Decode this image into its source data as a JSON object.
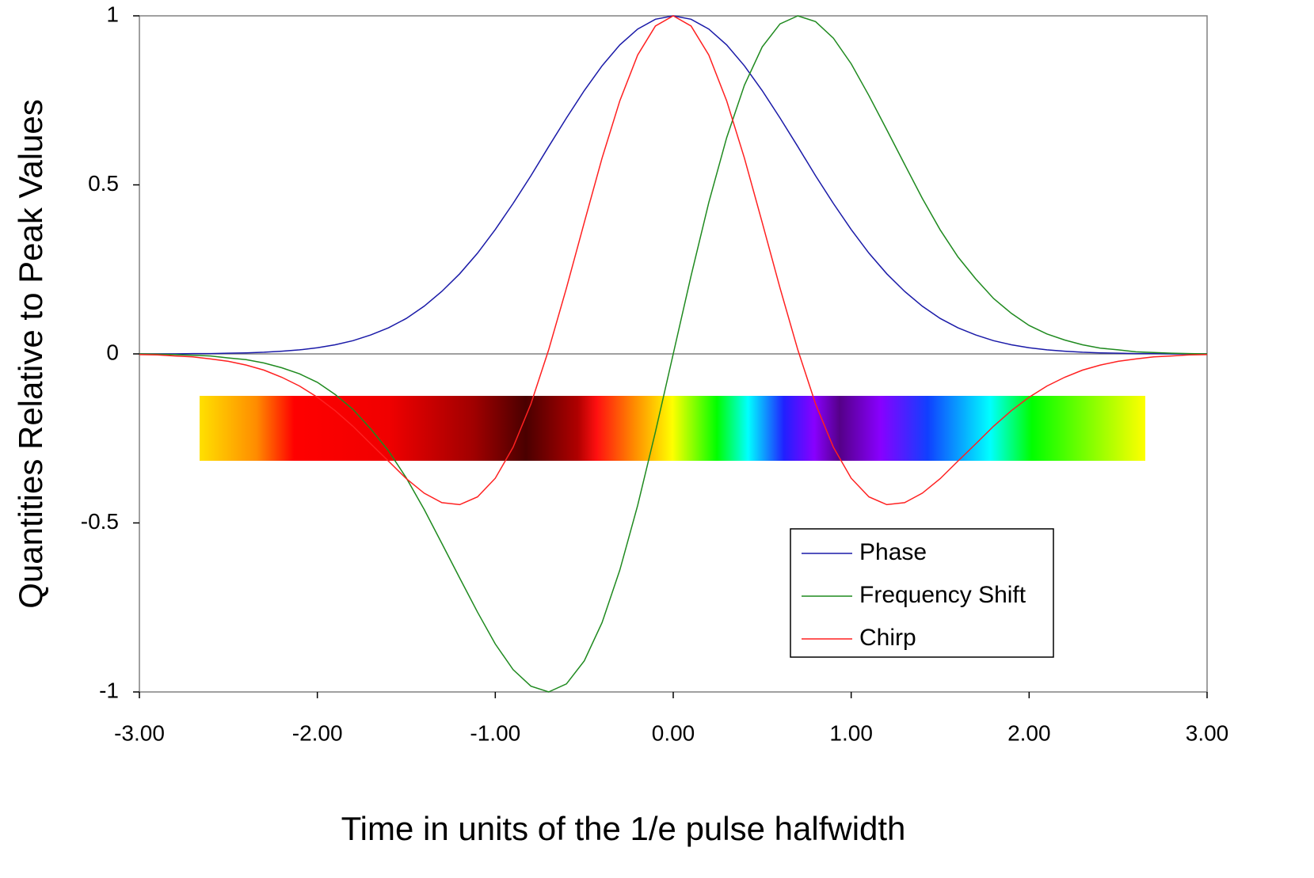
{
  "chart_data": {
    "type": "line",
    "xlabel": "Time in units of the 1/e pulse halfwidth",
    "ylabel": "Quantities Relative to Peak Values",
    "x": [
      -3.0,
      -2.9,
      -2.8,
      -2.7,
      -2.6,
      -2.5,
      -2.4,
      -2.3,
      -2.2,
      -2.1,
      -2.0,
      -1.9,
      -1.8,
      -1.7,
      -1.6,
      -1.5,
      -1.4,
      -1.3,
      -1.2,
      -1.1,
      -1.0,
      -0.9,
      -0.8,
      -0.7,
      -0.6,
      -0.5,
      -0.4,
      -0.3,
      -0.2,
      -0.1,
      0,
      0.1,
      0.2,
      0.3,
      0.4,
      0.5,
      0.6,
      0.7,
      0.8,
      0.9,
      1.0,
      1.1,
      1.2,
      1.3,
      1.4,
      1.5,
      1.6,
      1.7,
      1.8,
      1.9,
      2.0,
      2.1,
      2.2,
      2.3,
      2.4,
      2.5,
      2.6,
      2.7,
      2.8,
      2.9,
      3.0
    ],
    "series": [
      {
        "name": "Phase",
        "color": "#1a1aa8",
        "values": [
          0,
          0,
          0,
          0.001,
          0.001,
          0.002,
          0.003,
          0.005,
          0.008,
          0.012,
          0.018,
          0.027,
          0.039,
          0.056,
          0.077,
          0.105,
          0.141,
          0.185,
          0.237,
          0.298,
          0.368,
          0.445,
          0.527,
          0.613,
          0.698,
          0.779,
          0.852,
          0.914,
          0.961,
          0.99,
          1,
          0.99,
          0.961,
          0.914,
          0.852,
          0.779,
          0.698,
          0.613,
          0.527,
          0.445,
          0.368,
          0.298,
          0.237,
          0.185,
          0.141,
          0.105,
          0.077,
          0.056,
          0.039,
          0.027,
          0.018,
          0.012,
          0.008,
          0.005,
          0.003,
          0.002,
          0.001,
          0.001,
          0,
          0,
          0
        ]
      },
      {
        "name": "Frequency Shift",
        "color": "#1f8a1f",
        "values": [
          0,
          -0.001,
          -0.002,
          -0.004,
          -0.006,
          -0.012,
          -0.017,
          -0.027,
          -0.041,
          -0.059,
          -0.084,
          -0.12,
          -0.164,
          -0.222,
          -0.287,
          -0.367,
          -0.46,
          -0.561,
          -0.663,
          -0.764,
          -0.858,
          -0.934,
          -0.983,
          -1.0,
          -0.976,
          -0.908,
          -0.795,
          -0.639,
          -0.448,
          -0.231,
          0,
          0.231,
          0.448,
          0.639,
          0.795,
          0.908,
          0.976,
          1.0,
          0.983,
          0.934,
          0.858,
          0.764,
          0.663,
          0.561,
          0.46,
          0.367,
          0.287,
          0.222,
          0.164,
          0.12,
          0.084,
          0.059,
          0.041,
          0.027,
          0.017,
          0.012,
          0.006,
          0.004,
          0.002,
          0.001,
          0
        ]
      },
      {
        "name": "Chirp",
        "color": "#ff2020",
        "values": [
          -0.002,
          -0.003,
          -0.006,
          -0.009,
          -0.015,
          -0.022,
          -0.033,
          -0.048,
          -0.069,
          -0.095,
          -0.128,
          -0.168,
          -0.214,
          -0.266,
          -0.317,
          -0.369,
          -0.412,
          -0.44,
          -0.446,
          -0.423,
          -0.368,
          -0.276,
          -0.148,
          0.012,
          0.195,
          0.389,
          0.579,
          0.749,
          0.884,
          0.97,
          1,
          0.97,
          0.884,
          0.749,
          0.579,
          0.389,
          0.195,
          0.012,
          -0.148,
          -0.276,
          -0.368,
          -0.423,
          -0.446,
          -0.44,
          -0.412,
          -0.369,
          -0.317,
          -0.266,
          -0.214,
          -0.168,
          -0.128,
          -0.095,
          -0.069,
          -0.048,
          -0.033,
          -0.022,
          -0.015,
          -0.009,
          -0.006,
          -0.003,
          -0.002
        ]
      }
    ],
    "xlim": [
      -3,
      3
    ],
    "xticks": [
      {
        "value": -3,
        "label": "-3.00"
      },
      {
        "value": -2,
        "label": "-2.00"
      },
      {
        "value": -1,
        "label": "-1.00"
      },
      {
        "value": 0,
        "label": "0.00"
      },
      {
        "value": 1,
        "label": "1.00"
      },
      {
        "value": 2,
        "label": "2.00"
      },
      {
        "value": 3,
        "label": "3.00"
      }
    ],
    "ylim": [
      -1,
      1
    ],
    "yticks": [
      -1,
      -0.5,
      0,
      0.5,
      1
    ],
    "legend": "lower-right"
  }
}
